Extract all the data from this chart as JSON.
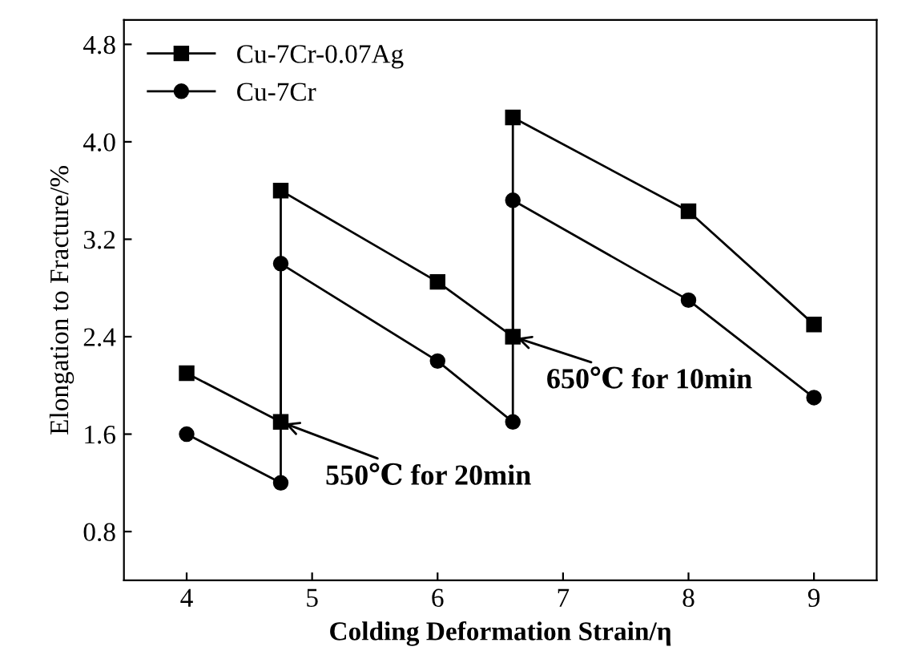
{
  "chart_data": {
    "type": "line",
    "xlabel": "Colding Deformation Strain/η",
    "ylabel": "Elongation to Fracture/%",
    "xlim": [
      3.5,
      9.5
    ],
    "xticks": [
      4,
      5,
      6,
      7,
      8,
      9
    ],
    "ylim": [
      0.4,
      5.0
    ],
    "yticks": [
      0.8,
      1.6,
      2.4,
      3.2,
      {
        "value": 4,
        "label": "4.0"
      },
      4.8
    ],
    "legend": "top left",
    "grid": false,
    "series": [
      {
        "name": "Cu-7Cr-0.07Ag",
        "color": "#000000",
        "marker": "square",
        "x": [
          4,
          4.75,
          4.75,
          6,
          6.6,
          6.6,
          8,
          9
        ],
        "values": [
          2.1,
          1.7,
          3.6,
          2.85,
          2.4,
          4.2,
          3.43,
          2.5
        ]
      },
      {
        "name": "Cu-7Cr",
        "color": "#000000",
        "marker": "circle",
        "x": [
          4,
          4.75,
          4.75,
          6,
          6.6,
          6.6,
          8,
          9
        ],
        "values": [
          1.6,
          1.2,
          3.0,
          2.2,
          1.7,
          3.52,
          2.7,
          1.9
        ]
      }
    ],
    "annotations": [
      {
        "text": "550℃ for 20min",
        "x": 4.75,
        "y": 1.7
      },
      {
        "text": "650℃ for 10min",
        "x": 6.6,
        "y": 2.4
      }
    ]
  }
}
